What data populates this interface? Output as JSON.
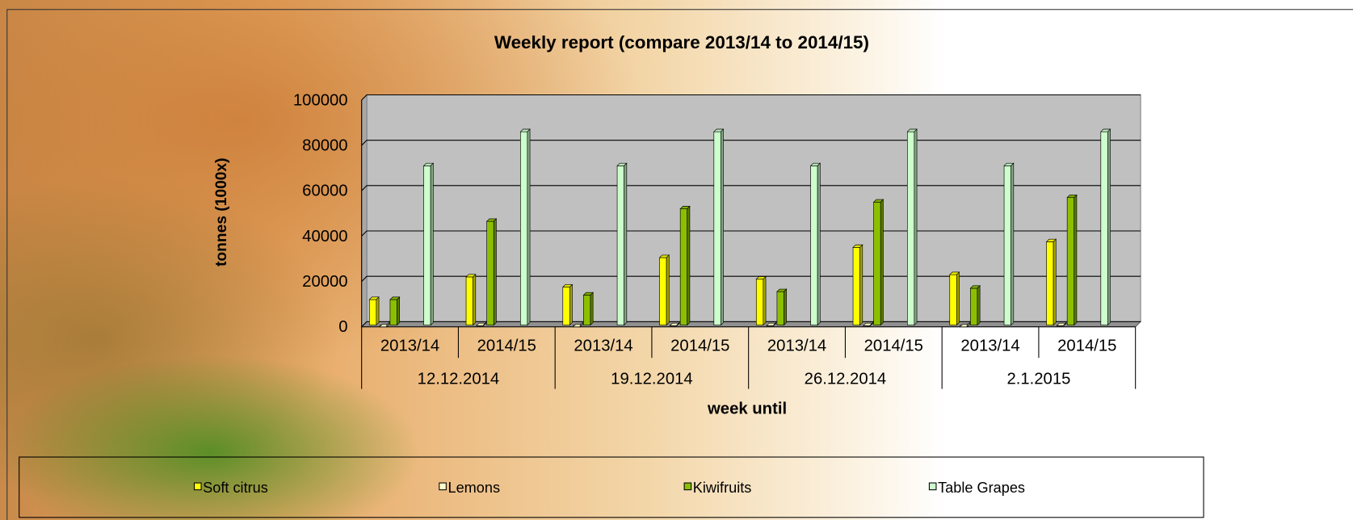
{
  "chart_data": {
    "type": "bar3d",
    "title": "Weekly report (compare 2013/14 to 2014/15)",
    "y_label": "tonnes (1000x)",
    "x_label": "week until",
    "categories": [
      "2013/14",
      "2014/15",
      "2013/14",
      "2014/15",
      "2013/14",
      "2014/15",
      "2013/14",
      "2014/15"
    ],
    "category_groups": [
      "12.12.2014",
      "19.12.2014",
      "26.12.2014",
      "2.1.2015"
    ],
    "series": [
      {
        "name": "Soft citrus",
        "color": "#ffff00",
        "values": [
          12000,
          22000,
          17500,
          30500,
          21000,
          35000,
          23000,
          37500
        ]
      },
      {
        "name": "Lemons",
        "color": "#ffffcc",
        "values": [
          0,
          500,
          0,
          500,
          500,
          500,
          0,
          500
        ]
      },
      {
        "name": "Kiwifruits",
        "color": "#8cbf00",
        "values": [
          12000,
          46500,
          14000,
          52000,
          15500,
          55000,
          17000,
          57000
        ]
      },
      {
        "name": "Table Grapes",
        "color": "#ccffcc",
        "values": [
          71000,
          86000,
          71000,
          86000,
          71000,
          86000,
          71000,
          86000
        ]
      }
    ],
    "ylim": [
      0,
      100000
    ],
    "yticks": [
      0,
      20000,
      40000,
      60000,
      80000,
      100000
    ],
    "grid": true,
    "legend": "bottom"
  }
}
